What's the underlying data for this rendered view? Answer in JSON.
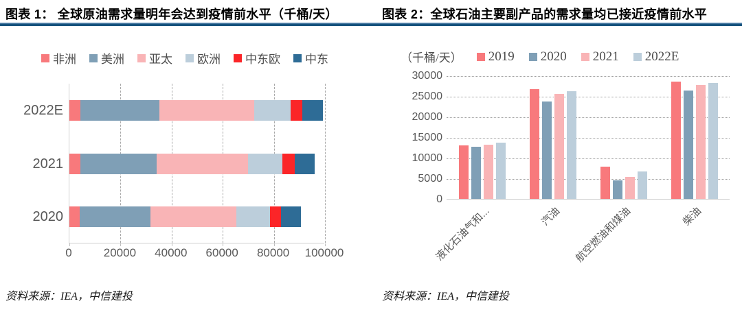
{
  "page": {
    "sources": {
      "left": "资料来源：IEA，中信建投",
      "right": "资料来源：IEA，中信建投"
    },
    "accent_rule_color": "#17537E"
  },
  "chart_data": [
    {
      "type": "bar",
      "orientation": "horizontal",
      "stacked": true,
      "title": "图表 1： 全球原油需求量明年会达到疫情前水平（千桶/天）",
      "unit": "千桶/天",
      "categories": [
        "2022E",
        "2021",
        "2020"
      ],
      "series": [
        {
          "name": "非洲",
          "color": "#F8797C",
          "values": [
            4300,
            4300,
            4000
          ]
        },
        {
          "name": "美洲",
          "color": "#7F9FB6",
          "values": [
            31000,
            29800,
            27800
          ]
        },
        {
          "name": "亚太",
          "color": "#F9B4B6",
          "values": [
            37100,
            35700,
            33600
          ]
        },
        {
          "name": "欧洲",
          "color": "#BCCEDB",
          "values": [
            14100,
            13600,
            13000
          ]
        },
        {
          "name": "中东欧",
          "color": "#FB2528",
          "values": [
            4700,
            4650,
            4300
          ]
        },
        {
          "name": "中东",
          "color": "#2E6C96",
          "values": [
            8100,
            7900,
            7800
          ]
        }
      ],
      "xlim": [
        0,
        100000
      ],
      "xticks": [
        0,
        20000,
        40000,
        60000,
        80000,
        100000
      ],
      "grid": "vertical-dashed",
      "legend_position": "top"
    },
    {
      "type": "bar",
      "orientation": "vertical",
      "grouped": true,
      "title": "图表 2：全球石油主要副产品的需求量均已接近疫情前水平",
      "unit_label": "（千桶/天）",
      "categories": [
        "液化石油气和...",
        "汽油",
        "航空燃油和煤油",
        "柴油"
      ],
      "series": [
        {
          "name": "2019",
          "color": "#F8797C",
          "values": [
            13000,
            26700,
            7900,
            28500
          ]
        },
        {
          "name": "2020",
          "color": "#7F9FB6",
          "values": [
            12600,
            23600,
            4500,
            26300
          ]
        },
        {
          "name": "2021",
          "color": "#F9B4B6",
          "values": [
            13200,
            25500,
            5300,
            27600
          ]
        },
        {
          "name": "2022E",
          "color": "#BCCEDB",
          "values": [
            13700,
            26200,
            6600,
            28100
          ]
        }
      ],
      "ylim": [
        0,
        30000
      ],
      "yticks": [
        0,
        5000,
        10000,
        15000,
        20000,
        25000,
        30000
      ],
      "grid": "horizontal-dotted",
      "legend_position": "top"
    }
  ]
}
